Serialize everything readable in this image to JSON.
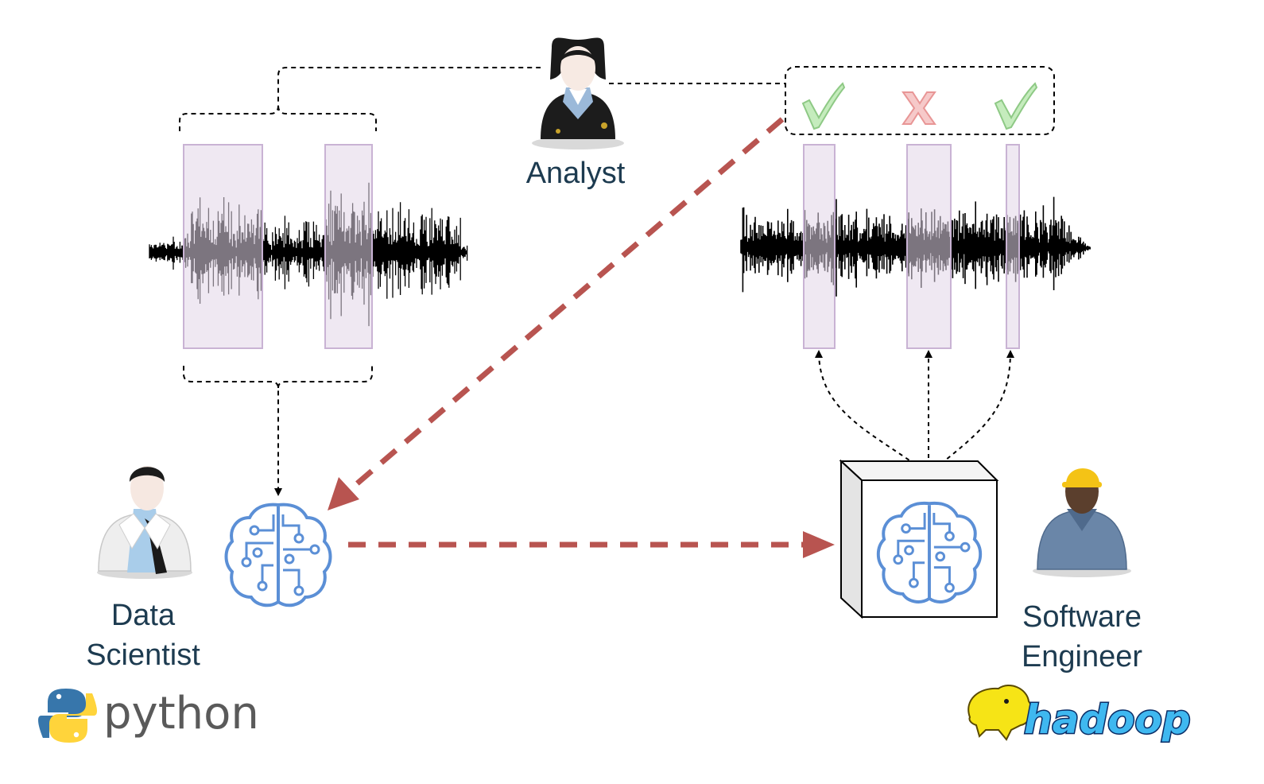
{
  "labels": {
    "analyst": "Analyst",
    "data_scientist_line1": "Data",
    "data_scientist_line2": "Scientist",
    "software_engineer_line1": "Software",
    "software_engineer_line2": "Engineer"
  },
  "logos": {
    "python": "python",
    "hadoop": "hadoop"
  },
  "review_marks": [
    "check",
    "cross",
    "check"
  ],
  "colors": {
    "label_text": "#1d3b50",
    "flow_arrow": "#b85450",
    "segment_fill": "#e1d5e7",
    "check": "#8ec985",
    "cross": "#e89696",
    "model_icon": "#5b8fd6",
    "waveform": "#000000"
  },
  "icons": {
    "analyst": "analyst-avatar-icon",
    "data_scientist": "data-scientist-avatar-icon",
    "software_engineer": "software-engineer-avatar-icon",
    "model": "ai-brain-icon",
    "deployment": "deployment-box-icon"
  }
}
